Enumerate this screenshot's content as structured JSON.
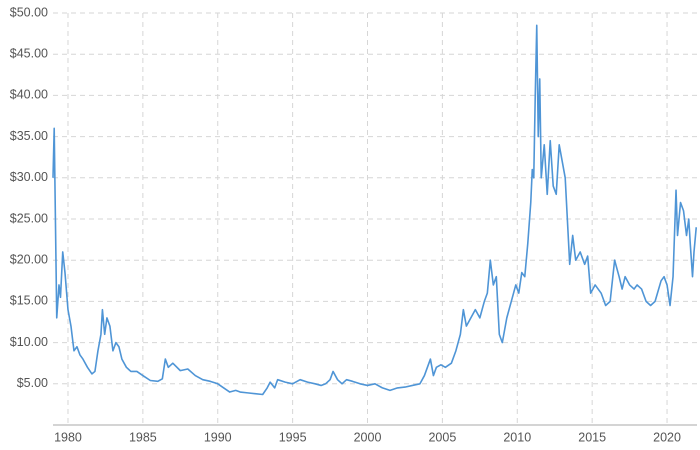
{
  "chart_data": {
    "type": "line",
    "x": [
      1979.0,
      1979.08,
      1979.25,
      1979.4,
      1979.5,
      1979.65,
      1979.8,
      1980.0,
      1980.2,
      1980.4,
      1980.6,
      1980.8,
      1981.0,
      1981.3,
      1981.6,
      1981.8,
      1982.0,
      1982.2,
      1982.3,
      1982.45,
      1982.6,
      1982.8,
      1983.0,
      1983.2,
      1983.4,
      1983.6,
      1983.9,
      1984.2,
      1984.6,
      1985.0,
      1985.5,
      1986.0,
      1986.3,
      1986.5,
      1986.7,
      1987.0,
      1987.5,
      1988.0,
      1988.5,
      1989.0,
      1989.5,
      1990.0,
      1990.4,
      1990.8,
      1991.2,
      1991.5,
      1992.0,
      1992.5,
      1993.0,
      1993.3,
      1993.5,
      1993.8,
      1994.0,
      1994.5,
      1995.0,
      1995.5,
      1996.0,
      1996.5,
      1996.9,
      1997.2,
      1997.5,
      1997.7,
      1998.0,
      1998.3,
      1998.6,
      1999.0,
      1999.5,
      2000.0,
      2000.5,
      2001.0,
      2001.5,
      2002.0,
      2002.5,
      2003.0,
      2003.5,
      2003.8,
      2004.2,
      2004.4,
      2004.6,
      2004.9,
      2005.2,
      2005.6,
      2005.9,
      2006.2,
      2006.4,
      2006.6,
      2006.9,
      2007.2,
      2007.5,
      2007.8,
      2008.0,
      2008.2,
      2008.4,
      2008.6,
      2008.8,
      2009.0,
      2009.3,
      2009.6,
      2009.9,
      2010.1,
      2010.3,
      2010.5,
      2010.7,
      2010.9,
      2011.0,
      2011.1,
      2011.2,
      2011.3,
      2011.4,
      2011.5,
      2011.6,
      2011.8,
      2012.0,
      2012.2,
      2012.4,
      2012.6,
      2012.8,
      2013.0,
      2013.2,
      2013.4,
      2013.5,
      2013.7,
      2013.9,
      2014.2,
      2014.5,
      2014.7,
      2014.9,
      2015.2,
      2015.6,
      2015.9,
      2016.2,
      2016.5,
      2016.8,
      2017.0,
      2017.2,
      2017.5,
      2017.8,
      2018.0,
      2018.3,
      2018.6,
      2018.9,
      2019.2,
      2019.6,
      2019.8,
      2020.0,
      2020.2,
      2020.4,
      2020.6,
      2020.7,
      2020.9,
      2021.1,
      2021.3,
      2021.45,
      2021.55,
      2021.7,
      2021.8,
      2021.95
    ],
    "values": [
      30,
      36,
      13,
      17,
      15.5,
      21,
      18.5,
      14,
      12,
      9,
      9.5,
      8.5,
      8,
      7,
      6.2,
      6.5,
      9,
      11,
      14,
      11,
      13,
      12,
      9,
      10,
      9.5,
      8,
      7,
      6.5,
      6.5,
      6,
      5.4,
      5.3,
      5.6,
      8,
      7,
      7.5,
      6.6,
      6.8,
      6,
      5.5,
      5.3,
      5,
      4.5,
      4,
      4.2,
      4,
      3.9,
      3.8,
      3.7,
      4.5,
      5.2,
      4.5,
      5.5,
      5.2,
      5,
      5.5,
      5.2,
      5,
      4.8,
      5,
      5.5,
      6.5,
      5.5,
      5,
      5.5,
      5.3,
      5,
      4.8,
      5,
      4.5,
      4.2,
      4.5,
      4.6,
      4.8,
      5,
      6,
      8,
      6,
      7,
      7.3,
      7,
      7.5,
      9,
      11,
      14,
      12,
      13,
      14,
      13,
      15,
      16,
      20,
      17,
      18,
      11,
      10,
      13,
      15,
      17,
      16,
      18.5,
      18,
      22,
      27,
      31,
      30,
      40,
      48.5,
      35,
      42,
      30,
      34,
      28,
      34.5,
      29,
      28,
      34,
      32,
      30,
      23,
      19.5,
      23,
      20,
      21,
      19.5,
      20.5,
      16,
      17,
      16,
      14.5,
      15,
      20,
      18,
      16.5,
      18,
      17,
      16.5,
      17,
      16.5,
      15,
      14.5,
      15,
      17.5,
      18,
      17,
      14.5,
      18,
      28.5,
      23,
      27,
      26,
      23,
      25,
      22,
      18,
      21,
      24
    ],
    "color": "#4f95d6",
    "xlim": [
      1979,
      2022
    ],
    "xticks": [
      1980,
      1985,
      1990,
      1995,
      2000,
      2005,
      2010,
      2015,
      2020
    ],
    "ylim": [
      0,
      50
    ],
    "yticks": [
      {
        "value": 5,
        "label": "$5.00"
      },
      {
        "value": 10,
        "label": "$10.00"
      },
      {
        "value": 15,
        "label": "$15.00"
      },
      {
        "value": 20,
        "label": "$20.00"
      },
      {
        "value": 25,
        "label": "$25.00"
      },
      {
        "value": 30,
        "label": "$30.00"
      },
      {
        "value": 35,
        "label": "$35.00"
      },
      {
        "value": 40,
        "label": "$40.00"
      },
      {
        "value": 45,
        "label": "$45.00"
      },
      {
        "value": 50,
        "label": "$50.00"
      }
    ],
    "grid": true
  }
}
